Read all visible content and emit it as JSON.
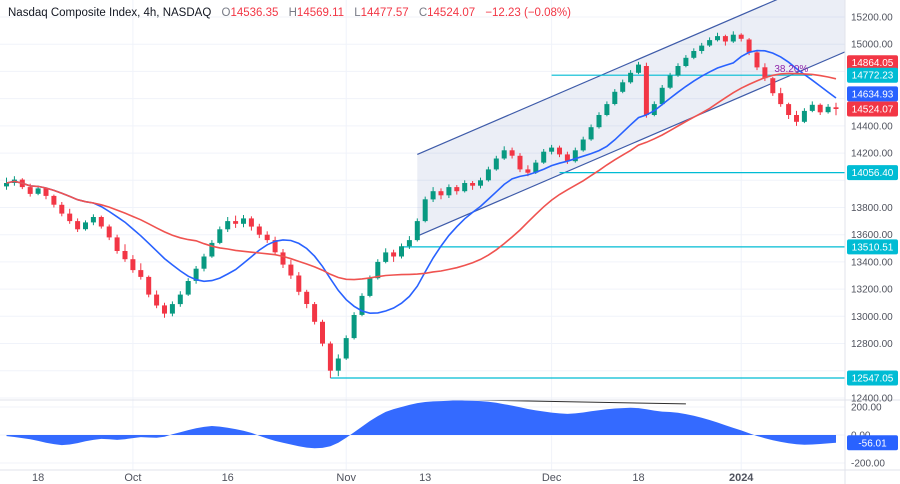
{
  "header": {
    "symbol_info": "Nasdaq Composite Index, 4h, NASDAQ",
    "ohlc": {
      "items": [
        {
          "label": "O",
          "value": "14536.35"
        },
        {
          "label": "H",
          "value": "14569.11"
        },
        {
          "label": "L",
          "value": "14477.57"
        },
        {
          "label": "C",
          "value": "14524.07"
        }
      ],
      "change": "−12.23 (−0.08%)"
    }
  },
  "colors": {
    "background": "#ffffff",
    "grid": "#f0f3fa",
    "border": "#e0e3eb",
    "up": "#089981",
    "down": "#f23645",
    "axis_text": "#50535e",
    "legend_text": "#131722",
    "legend_muted": "#787b86",
    "legend_value": "#f23645",
    "accent_blue": "#2962ff",
    "accent_teal": "#00bcd4"
  },
  "price_scale": {
    "badges": [
      {
        "text": "14864.05",
        "price": 14864.05,
        "color": "#f23645",
        "pane": "main"
      },
      {
        "text": "14772.23",
        "price": 14772.23,
        "color": "#00bcd4",
        "pane": "main"
      },
      {
        "text": "14634.93",
        "price": 14634.93,
        "color": "#2962ff",
        "pane": "main"
      },
      {
        "text": "14524.07",
        "price": 14524.07,
        "color": "#f23645",
        "pane": "main"
      },
      {
        "text": "14056.40",
        "price": 14056.4,
        "color": "#00bcd4",
        "pane": "main"
      },
      {
        "text": "13510.51",
        "price": 13510.51,
        "color": "#00bcd4",
        "pane": "main"
      },
      {
        "text": "12547.05",
        "price": 12547.05,
        "color": "#00bcd4",
        "pane": "main"
      },
      {
        "text": "-56.01",
        "value": -56.01,
        "color": "#2962ff",
        "pane": "indicator"
      }
    ]
  },
  "chart_data": {
    "type": "candlestick",
    "title": "Nasdaq Composite Index",
    "interval": "4h",
    "exchange": "NASDAQ",
    "x_ticks": [
      {
        "index": 4,
        "label": "18",
        "gridline": false
      },
      {
        "index": 16,
        "label": "Oct",
        "gridline": true
      },
      {
        "index": 28,
        "label": "16",
        "gridline": false
      },
      {
        "index": 43,
        "label": "Nov",
        "gridline": true
      },
      {
        "index": 53,
        "label": "13",
        "gridline": false
      },
      {
        "index": 69,
        "label": "Dec",
        "gridline": true
      },
      {
        "index": 80,
        "label": "18",
        "gridline": false
      },
      {
        "index": 93,
        "label": "2024",
        "gridline": true
      }
    ],
    "main_pane": {
      "ylim": [
        12385,
        15325
      ],
      "grid": true,
      "y_ticks": [
        {
          "price": 15200,
          "label": "15200.00"
        },
        {
          "price": 15000,
          "label": "15000.00"
        },
        {
          "price": 14800,
          "label": "14800.00"
        },
        {
          "price": 14600,
          "label": "14600.00"
        },
        {
          "price": 14400,
          "label": "14400.00"
        },
        {
          "price": 14200,
          "label": "14200.00"
        },
        {
          "price": 14000,
          "label": "14000.00"
        },
        {
          "price": 13800,
          "label": "13800.00"
        },
        {
          "price": 13600,
          "label": "13600.00"
        },
        {
          "price": 13400,
          "label": "13400.00"
        },
        {
          "price": 13200,
          "label": "13200.00"
        },
        {
          "price": 13000,
          "label": "13000.00"
        },
        {
          "price": 12800,
          "label": "12800.00"
        },
        {
          "price": 12600,
          "label": "12600.00"
        },
        {
          "price": 12400,
          "label": "12400.00"
        }
      ],
      "candles_ohlc": [
        [
          13955,
          14020,
          13930,
          13980
        ],
        [
          13980,
          14030,
          13960,
          14005
        ],
        [
          14005,
          14015,
          13935,
          13950
        ],
        [
          13950,
          13975,
          13880,
          13900
        ],
        [
          13900,
          13955,
          13890,
          13940
        ],
        [
          13940,
          13945,
          13860,
          13885
        ],
        [
          13885,
          13895,
          13800,
          13820
        ],
        [
          13820,
          13840,
          13735,
          13755
        ],
        [
          13755,
          13790,
          13680,
          13700
        ],
        [
          13700,
          13720,
          13620,
          13640
        ],
        [
          13640,
          13705,
          13630,
          13690
        ],
        [
          13690,
          13750,
          13670,
          13730
        ],
        [
          13730,
          13740,
          13645,
          13660
        ],
        [
          13660,
          13675,
          13560,
          13580
        ],
        [
          13580,
          13600,
          13460,
          13480
        ],
        [
          13480,
          13530,
          13400,
          13420
        ],
        [
          13420,
          13450,
          13320,
          13340
        ],
        [
          13340,
          13390,
          13270,
          13290
        ],
        [
          13290,
          13300,
          13140,
          13160
        ],
        [
          13160,
          13190,
          13060,
          13080
        ],
        [
          13080,
          13100,
          12990,
          13020
        ],
        [
          13020,
          13110,
          13000,
          13090
        ],
        [
          13090,
          13185,
          13070,
          13160
        ],
        [
          13160,
          13280,
          13150,
          13260
        ],
        [
          13260,
          13370,
          13240,
          13350
        ],
        [
          13350,
          13460,
          13330,
          13440
        ],
        [
          13440,
          13560,
          13430,
          13540
        ],
        [
          13540,
          13660,
          13530,
          13640
        ],
        [
          13640,
          13730,
          13620,
          13700
        ],
        [
          13700,
          13740,
          13650,
          13680
        ],
        [
          13680,
          13745,
          13655,
          13720
        ],
        [
          13720,
          13735,
          13630,
          13660
        ],
        [
          13660,
          13680,
          13575,
          13600
        ],
        [
          13600,
          13625,
          13540,
          13560
        ],
        [
          13560,
          13585,
          13450,
          13470
        ],
        [
          13470,
          13495,
          13355,
          13380
        ],
        [
          13380,
          13415,
          13275,
          13300
        ],
        [
          13300,
          13325,
          13155,
          13180
        ],
        [
          13180,
          13195,
          13060,
          13090
        ],
        [
          13090,
          13105,
          12940,
          12960
        ],
        [
          12960,
          12975,
          12780,
          12800
        ],
        [
          12800,
          12815,
          12547.05,
          12600
        ],
        [
          12600,
          12720,
          12560,
          12690
        ],
        [
          12690,
          12860,
          12680,
          12840
        ],
        [
          12840,
          13030,
          12830,
          13010
        ],
        [
          13010,
          13170,
          13000,
          13150
        ],
        [
          13150,
          13300,
          13140,
          13280
        ],
        [
          13280,
          13420,
          13270,
          13400
        ],
        [
          13400,
          13500,
          13390,
          13470
        ],
        [
          13470,
          13490,
          13400,
          13440
        ],
        [
          13440,
          13535,
          13425,
          13515
        ],
        [
          13515,
          13590,
          13495,
          13560
        ],
        [
          13560,
          13720,
          13550,
          13700
        ],
        [
          13700,
          13880,
          13690,
          13860
        ],
        [
          13860,
          13950,
          13840,
          13920
        ],
        [
          13920,
          13940,
          13860,
          13890
        ],
        [
          13890,
          13970,
          13870,
          13950
        ],
        [
          13950,
          13965,
          13895,
          13920
        ],
        [
          13920,
          14000,
          13910,
          13980
        ],
        [
          13980,
          13995,
          13930,
          13960
        ],
        [
          13960,
          14020,
          13940,
          14000
        ],
        [
          14000,
          14100,
          13990,
          14080
        ],
        [
          14080,
          14180,
          14070,
          14160
        ],
        [
          14160,
          14250,
          14150,
          14220
        ],
        [
          14220,
          14240,
          14160,
          14180
        ],
        [
          14180,
          14200,
          14060,
          14080
        ],
        [
          14080,
          14110,
          14030,
          14056
        ],
        [
          14056,
          14150,
          14046,
          14130
        ],
        [
          14130,
          14230,
          14120,
          14210
        ],
        [
          14210,
          14260,
          14190,
          14240
        ],
        [
          14240,
          14255,
          14170,
          14190
        ],
        [
          14190,
          14210,
          14120,
          14140
        ],
        [
          14140,
          14240,
          14130,
          14220
        ],
        [
          14220,
          14320,
          14210,
          14300
        ],
        [
          14300,
          14410,
          14290,
          14390
        ],
        [
          14390,
          14500,
          14380,
          14480
        ],
        [
          14480,
          14580,
          14470,
          14560
        ],
        [
          14560,
          14670,
          14550,
          14650
        ],
        [
          14650,
          14740,
          14640,
          14720
        ],
        [
          14720,
          14810,
          14710,
          14790
        ],
        [
          14790,
          14870,
          14780,
          14850
        ],
        [
          14840,
          14864,
          14460,
          14480
        ],
        [
          14480,
          14580,
          14470,
          14560
        ],
        [
          14560,
          14700,
          14550,
          14680
        ],
        [
          14680,
          14790,
          14670,
          14770
        ],
        [
          14770,
          14860,
          14760,
          14840
        ],
        [
          14840,
          14920,
          14830,
          14900
        ],
        [
          14900,
          14970,
          14890,
          14950
        ],
        [
          14950,
          15010,
          14930,
          14990
        ],
        [
          14990,
          15050,
          14980,
          15030
        ],
        [
          15030,
          15085,
          15020,
          15060
        ],
        [
          15060,
          15070,
          14990,
          15020
        ],
        [
          15020,
          15095,
          15010,
          15070
        ],
        [
          15070,
          15080,
          15020,
          15040
        ],
        [
          15035,
          15045,
          14920,
          14940
        ],
        [
          14940,
          14950,
          14810,
          14830
        ],
        [
          14830,
          14860,
          14730,
          14750
        ],
        [
          14750,
          14760,
          14620,
          14640
        ],
        [
          14640,
          14680,
          14540,
          14560
        ],
        [
          14560,
          14570,
          14450,
          14480
        ],
        [
          14480,
          14510,
          14400,
          14430
        ],
        [
          14430,
          14530,
          14420,
          14510
        ],
        [
          14510,
          14580,
          14500,
          14555
        ],
        [
          14555,
          14565,
          14480,
          14500
        ],
        [
          14500,
          14560,
          14490,
          14540
        ],
        [
          14536.35,
          14569.11,
          14477.57,
          14524.07
        ]
      ],
      "moving_averages": [
        {
          "name": "fast-ma-line",
          "period": 12,
          "color": "#2962ff",
          "last_value": 14634.93
        },
        {
          "name": "slow-ma-line",
          "period": 25,
          "color": "#ef5350",
          "last_value": 14864.05
        }
      ],
      "horizontal_rays": [
        {
          "price": 14772.23,
          "from_index": 69,
          "to_index": 102,
          "color": "#00bcd4",
          "label": "38.20%",
          "label_color": "#8e24aa"
        },
        {
          "price": 14056.4,
          "from_index": 70,
          "to_index": 107,
          "color": "#00bcd4"
        },
        {
          "price": 13510.51,
          "from_index": 50,
          "to_index": 107,
          "color": "#00bcd4"
        },
        {
          "price": 12547.05,
          "from_index": 41,
          "to_index": 107,
          "color": "#00bcd4"
        }
      ],
      "channel": {
        "i1": 52,
        "p1": 13590,
        "i2": 107,
        "p2": 14965,
        "width_points": 600,
        "color": "#3e5ba9",
        "fill": "rgba(62,91,169,0.10)"
      }
    },
    "indicator_pane": {
      "ylim": [
        -250,
        250
      ],
      "color": "#2962ff",
      "last_value": -56.01,
      "y_ticks": [
        {
          "value": 200,
          "label": "200.00"
        },
        {
          "value": 0,
          "label": "0.00"
        },
        {
          "value": -200,
          "label": "-200.00"
        }
      ],
      "values": [
        -8,
        -14,
        -22,
        -30,
        -42,
        -55,
        -65,
        -72,
        -68,
        -58,
        -45,
        -35,
        -28,
        -30,
        -35,
        -30,
        -22,
        -15,
        -18,
        -20,
        -12,
        5,
        20,
        35,
        48,
        58,
        64,
        60,
        52,
        42,
        30,
        15,
        -5,
        -25,
        -42,
        -55,
        -68,
        -80,
        -90,
        -95,
        -92,
        -80,
        -55,
        -20,
        20,
        60,
        100,
        135,
        165,
        185,
        200,
        215,
        228,
        236,
        240,
        242,
        245,
        248,
        246,
        244,
        242,
        238,
        230,
        220,
        210,
        198,
        186,
        176,
        168,
        160,
        154,
        151,
        154,
        161,
        169,
        177,
        184,
        189,
        192,
        194,
        192,
        184,
        174,
        167,
        164,
        159,
        149,
        137,
        123,
        107,
        89,
        69,
        51,
        33,
        13,
        -7,
        -23,
        -37,
        -49,
        -59,
        -66,
        -70,
        -68,
        -64,
        -60,
        -56.01
      ],
      "trendline": {
        "from_index": 59,
        "from_value": 250,
        "to_index": 86,
        "to_value": 222,
        "color": "#2e2e2e"
      }
    }
  }
}
